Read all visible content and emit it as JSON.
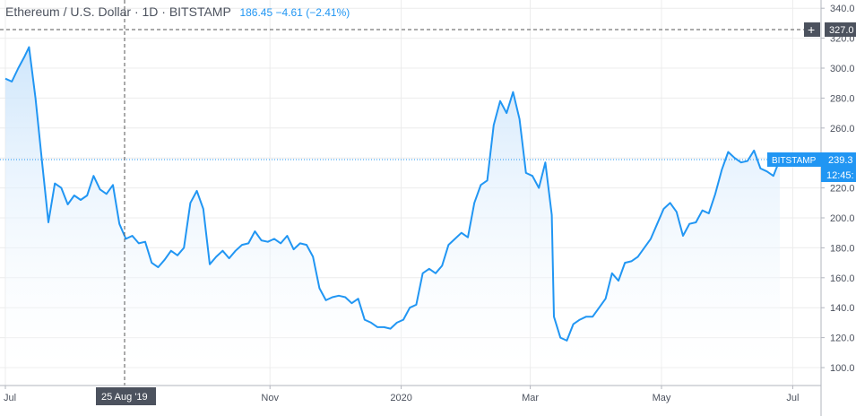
{
  "header": {
    "title": "Ethereum / U.S. Dollar · 1D · BITSTAMP",
    "last": "186.45",
    "change": "−4.61",
    "change_pct": "(−2.41%)"
  },
  "crosshair": {
    "x_label": "25 Aug '19",
    "y_label": "327.0"
  },
  "last_price_tag": {
    "source": "BITSTAMP",
    "value": "239.3",
    "countdown": "12:45:"
  },
  "colors": {
    "line": "#2196f3",
    "fill": "#e3f1fd",
    "grid": "#ececec",
    "text": "#4c525e",
    "label_bg": "#4c525e"
  },
  "chart_data": {
    "type": "area",
    "title": "Ethereum / U.S. Dollar · 1D · BITSTAMP",
    "x_tick_labels": [
      "Jul",
      "Nov",
      "2020",
      "Mar",
      "May",
      "Jul"
    ],
    "y_tick_labels": [
      "100.0",
      "120.0",
      "140.0",
      "160.0",
      "180.0",
      "200.0",
      "220.0",
      "240.0",
      "260.0",
      "280.0",
      "300.0",
      "320.0",
      "340.0"
    ],
    "ylim": [
      95,
      342
    ],
    "grid": true,
    "series": [
      {
        "x": [
          "2019-07-01",
          "2019-07-04",
          "2019-07-07",
          "2019-07-10",
          "2019-07-12",
          "2019-07-15",
          "2019-07-18",
          "2019-07-21",
          "2019-07-24",
          "2019-07-27",
          "2019-07-30",
          "2019-08-02",
          "2019-08-05",
          "2019-08-08",
          "2019-08-11",
          "2019-08-14",
          "2019-08-17",
          "2019-08-20",
          "2019-08-23",
          "2019-08-26",
          "2019-08-29",
          "2019-09-01",
          "2019-09-04",
          "2019-09-07",
          "2019-09-10",
          "2019-09-13",
          "2019-09-16",
          "2019-09-19",
          "2019-09-22",
          "2019-09-25",
          "2019-09-28",
          "2019-10-01",
          "2019-10-04",
          "2019-10-07",
          "2019-10-10",
          "2019-10-13",
          "2019-10-16",
          "2019-10-19",
          "2019-10-22",
          "2019-10-25",
          "2019-10-28",
          "2019-10-31",
          "2019-11-03",
          "2019-11-06",
          "2019-11-09",
          "2019-11-12",
          "2019-11-15",
          "2019-11-18",
          "2019-11-21",
          "2019-11-24",
          "2019-11-27",
          "2019-11-30",
          "2019-12-03",
          "2019-12-06",
          "2019-12-09",
          "2019-12-12",
          "2019-12-15",
          "2019-12-18",
          "2019-12-21",
          "2019-12-24",
          "2019-12-27",
          "2019-12-30",
          "2020-01-02",
          "2020-01-05",
          "2020-01-08",
          "2020-01-11",
          "2020-01-14",
          "2020-01-17",
          "2020-01-20",
          "2020-01-23",
          "2020-01-26",
          "2020-01-29",
          "2020-02-01",
          "2020-02-04",
          "2020-02-07",
          "2020-02-10",
          "2020-02-13",
          "2020-02-16",
          "2020-02-19",
          "2020-02-22",
          "2020-02-25",
          "2020-02-28",
          "2020-03-02",
          "2020-03-05",
          "2020-03-08",
          "2020-03-11",
          "2020-03-12",
          "2020-03-15",
          "2020-03-18",
          "2020-03-21",
          "2020-03-24",
          "2020-03-27",
          "2020-03-30",
          "2020-04-02",
          "2020-04-05",
          "2020-04-08",
          "2020-04-11",
          "2020-04-14",
          "2020-04-17",
          "2020-04-20",
          "2020-04-23",
          "2020-04-26",
          "2020-04-29",
          "2020-05-02",
          "2020-05-05",
          "2020-05-08",
          "2020-05-11",
          "2020-05-14",
          "2020-05-17",
          "2020-05-20",
          "2020-05-23",
          "2020-05-26",
          "2020-05-29",
          "2020-06-01",
          "2020-06-04",
          "2020-06-07",
          "2020-06-10",
          "2020-06-13",
          "2020-06-16",
          "2020-06-19",
          "2020-06-22",
          "2020-06-25"
        ],
        "y": [
          293,
          291,
          300,
          308,
          314,
          280,
          238,
          197,
          223,
          220,
          209,
          215,
          212,
          215,
          228,
          219,
          216,
          222,
          196,
          186,
          188,
          183,
          184,
          170,
          167,
          172,
          178,
          175,
          180,
          210,
          218,
          206,
          169,
          174,
          178,
          173,
          178,
          182,
          183,
          191,
          185,
          184,
          186,
          183,
          188,
          179,
          183,
          182,
          174,
          153,
          145,
          147,
          148,
          147,
          143,
          146,
          132,
          130,
          127,
          127,
          126,
          130,
          132,
          140,
          142,
          163,
          166,
          163,
          168,
          182,
          186,
          190,
          187,
          210,
          222,
          225,
          262,
          278,
          270,
          284,
          266,
          230,
          228,
          220,
          237,
          202,
          134,
          120,
          118,
          129,
          132,
          134,
          134,
          140,
          146,
          163,
          158,
          170,
          171,
          174,
          180,
          186,
          196,
          206,
          210,
          204,
          188,
          196,
          197,
          205,
          203,
          216,
          232,
          244,
          240,
          237,
          238,
          245,
          233,
          231,
          228,
          239
        ]
      }
    ]
  }
}
